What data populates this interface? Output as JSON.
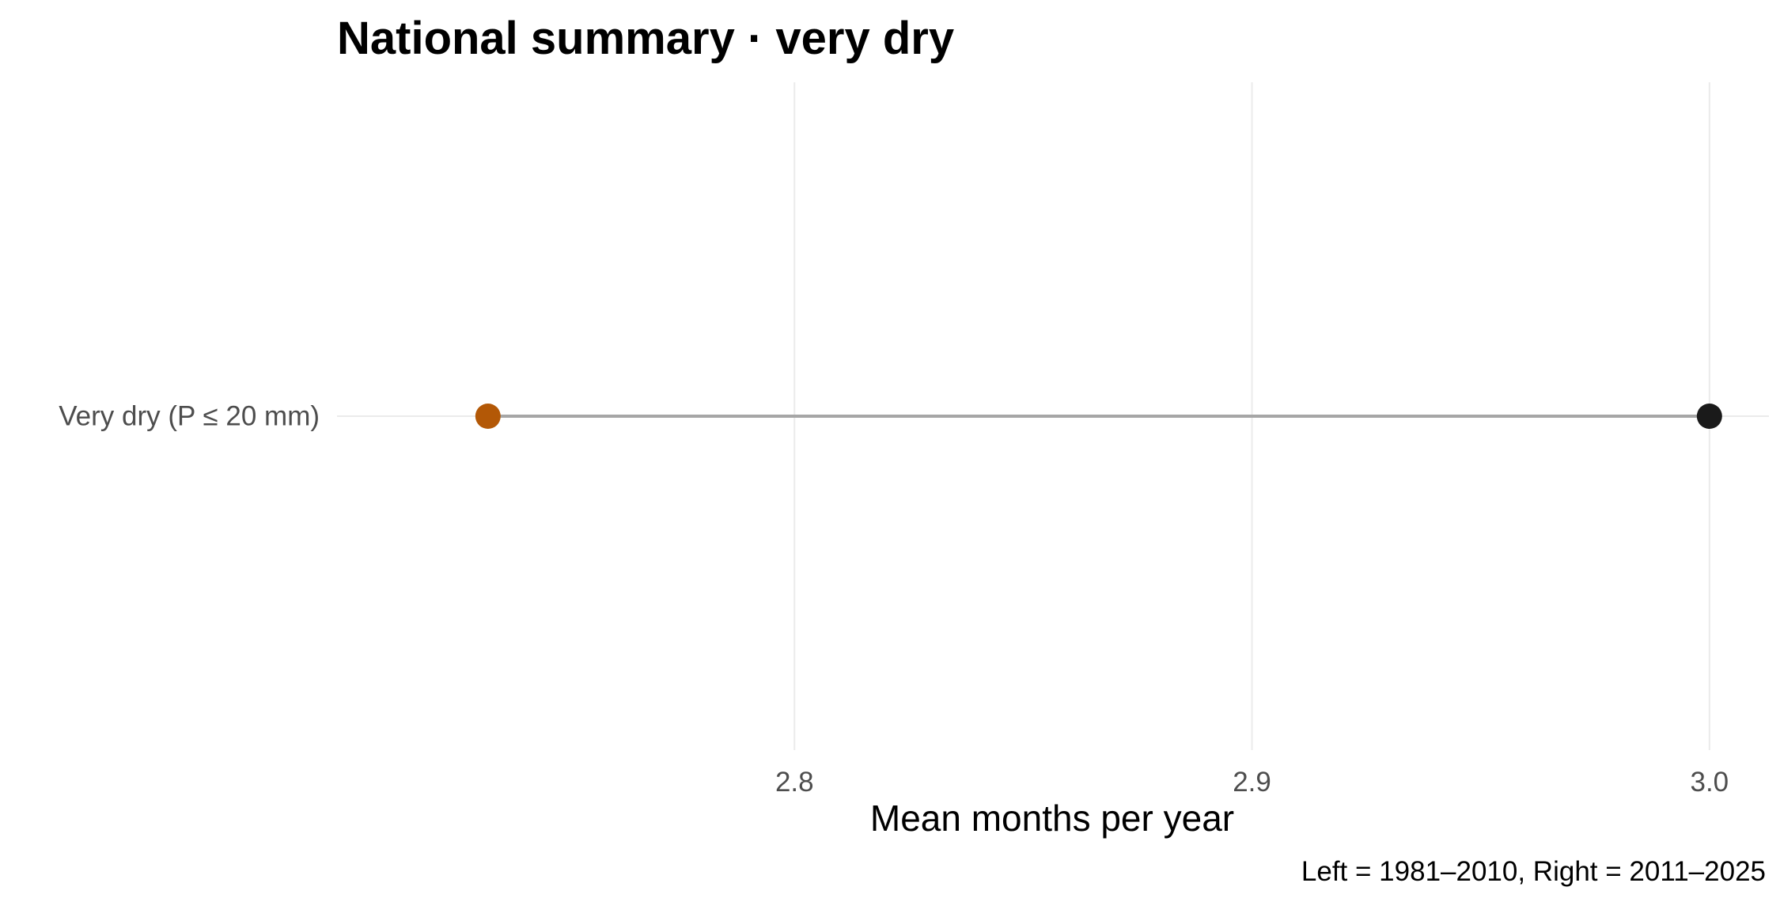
{
  "chart_data": {
    "type": "dumbbell",
    "title": "National summary · very dry",
    "xlabel": "Mean months per year",
    "ylabel": "",
    "caption": "Left = 1981–2010, Right = 2011–2025",
    "categories": [
      "Very dry (P ≤ 20 mm)"
    ],
    "series": [
      {
        "values": [
          2.733
        ],
        "color": "#b35806"
      },
      {
        "values": [
          3.0
        ],
        "color": "#1a1a1a"
      }
    ],
    "segment_color": "#a6a6a6",
    "xlim": [
      2.7,
      3.013
    ],
    "xticks": [
      2.8,
      2.9,
      3.0
    ],
    "xtick_labels": [
      "2.8",
      "2.9",
      "3.0"
    ],
    "grid": true,
    "gridline_color": "#ebebeb",
    "legend": "none"
  }
}
